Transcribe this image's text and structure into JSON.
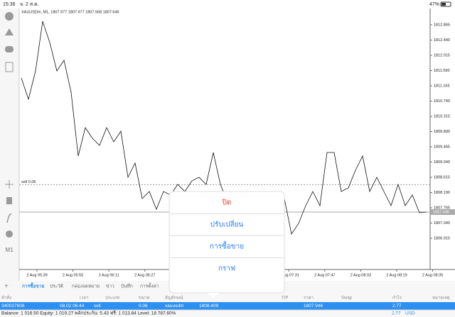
{
  "status_bar": {
    "time": "15:36",
    "date": "จ. 2 ส.ค.",
    "battery": "47%"
  },
  "chart": {
    "type": "line",
    "title": "XAUUSDm, M1, 1807.977 1807.977 1807.568 1807.646",
    "ylim": [
      1806.045,
      1813.32
    ],
    "yticks": [
      {
        "value": 1812.865,
        "label": "1812.865"
      },
      {
        "value": 1812.44,
        "label": "1812.440"
      },
      {
        "value": 1812.015,
        "label": "1812.015"
      },
      {
        "value": 1811.59,
        "label": "1811.590"
      },
      {
        "value": 1811.165,
        "label": "1811.165"
      },
      {
        "value": 1810.74,
        "label": "1810.740"
      },
      {
        "value": 1810.315,
        "label": "1810.315"
      },
      {
        "value": 1809.89,
        "label": "1809.890"
      },
      {
        "value": 1809.465,
        "label": "1809.465"
      },
      {
        "value": 1809.04,
        "label": "1809.040"
      },
      {
        "value": 1808.615,
        "label": "1808.615"
      },
      {
        "value": 1808.19,
        "label": "1808.190"
      },
      {
        "value": 1807.765,
        "label": "1807.765"
      },
      {
        "value": 1807.34,
        "label": "1807.340"
      },
      {
        "value": 1806.915,
        "label": "1806.915"
      }
    ],
    "x_labels": [
      "2 Aug 05:39",
      "2 Aug 05:55",
      "2 Aug 06:11",
      "2 Aug 06:27",
      "2 Aug 07:31",
      "2 Aug 07:47",
      "2 Aug 08:03",
      "2 Aug 08:19",
      "2 Aug 08:35"
    ],
    "values": [
      1811.382,
      1810.789,
      1811.58,
      1812.964,
      1812.371,
      1811.58,
      1811.877,
      1810.987,
      1809.208,
      1809.999,
      1809.702,
      1809.505,
      1809.999,
      1809.603,
      1809.9,
      1808.615,
      1809.01,
      1808.022,
      1808.22,
      1807.725,
      1808.22,
      1808.121,
      1808.417,
      1808.22,
      1808.516,
      1808.615,
      1808.417,
      1809.307,
      1808.417,
      1807.923,
      1808.22,
      1807.824,
      1808.022,
      1807.627,
      1807.923,
      1808.22,
      1807.824,
      1808.022,
      1807.034,
      1807.33,
      1807.824,
      1808.22,
      1807.824,
      1809.307,
      1809.307,
      1808.22,
      1808.318,
      1808.813,
      1809.208,
      1808.22,
      1808.615,
      1808.22,
      1807.824,
      1808.417,
      1807.824,
      1808.121,
      1807.627,
      1807.646
    ],
    "current_price": {
      "value": 1807.646,
      "label": "1807.646"
    },
    "sell_line": {
      "label": "sell 0.06",
      "value": 1808.409
    },
    "timeframe": "M1"
  },
  "menu": [
    "ปิด",
    "ปรับเปลี่ยน",
    "การซื้อขาย",
    "กราฟ"
  ],
  "tabs": [
    "การซื้อขาย",
    "ประวัติ",
    "กล่องจดหมาย",
    "ข่าว",
    "บันทึก",
    "การตั้งค่า"
  ],
  "table": {
    "headers": [
      "คำสั่ง",
      "เวลา",
      "ประเภท",
      "ขนาด",
      "สัญลักษณ์",
      "T/P",
      "ราคา",
      "Swap",
      "กำไร",
      "หมายเหตุ"
    ],
    "row": [
      "340027606",
      "08.02 06:44",
      "sell",
      "0.06",
      "xauusdm",
      "1808.409",
      "1807.946",
      "2.77"
    ]
  },
  "footer": {
    "summary": "Balance: 1 016.50 Equity: 1 019.27 พลักประกัน: 5.43 ฟรี: 1 013.84 Level: 18 787.60%",
    "profit": "2.77",
    "currency": "USD"
  }
}
